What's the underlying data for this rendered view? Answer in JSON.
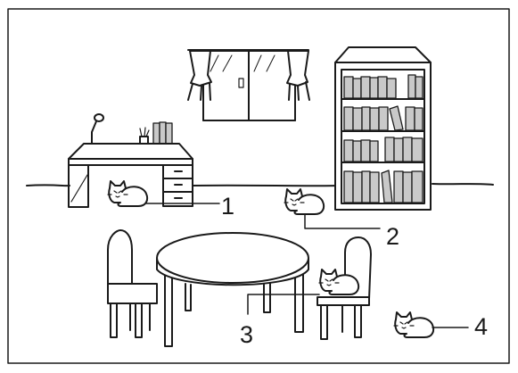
{
  "illustration": {
    "subject": "room-with-four-cats",
    "ink_color": "#1a1a1a",
    "paper_color": "#ffffff",
    "shade_color": "#c9c9c9",
    "callouts": [
      {
        "label": "1",
        "target": "cat-under-desk"
      },
      {
        "label": "2",
        "target": "cat-by-bookcase"
      },
      {
        "label": "3",
        "target": "cat-on-chair"
      },
      {
        "label": "4",
        "target": "cat-on-floor"
      }
    ]
  }
}
